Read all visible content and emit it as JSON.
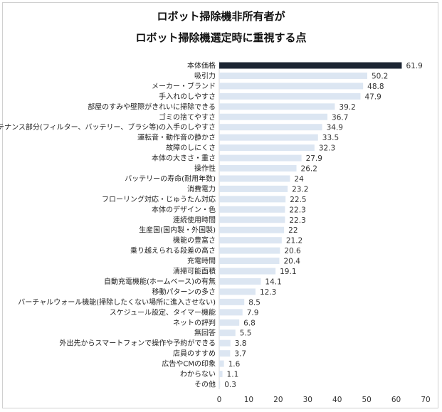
{
  "chart_data": {
    "type": "bar",
    "orientation": "horizontal",
    "title": [
      "ロボット掃除機非所有者が",
      "ロボット掃除機選定時に重視する点"
    ],
    "categories": [
      "本体価格",
      "吸引力",
      "メーカー・ブランド",
      "手入れのしやすさ",
      "部屋のすみや壁際がきれいに掃除できる",
      "ゴミの捨てやすさ",
      "メンテナンス部分(フィルター、バッテリー、ブラシ等)の入手のしやすさ",
      "運転音・動作音の静かさ",
      "故障のしにくさ",
      "本体の大きさ・重さ",
      "操作性",
      "バッテリーの寿命(耐用年数)",
      "消費電力",
      "フローリング対応・じゅうたん対応",
      "本体のデザイン・色",
      "連続使用時間",
      "生産国(国内製・外国製)",
      "機能の豊富さ",
      "乗り越えられる段差の高さ",
      "充電時間",
      "清掃可能面積",
      "自動充電機能(ホームベース)の有無",
      "移動パターンの多さ",
      "バーチャルウォール機能(掃除したくない場所に進入させない)",
      "スケジュール設定、タイマー機能",
      "ネットの評判",
      "無回答",
      "外出先からスマートフォンで操作や予約ができる",
      "店員のすすめ",
      "広告やCMの印象",
      "わからない",
      "その他"
    ],
    "values": [
      61.9,
      50.2,
      48.8,
      47.9,
      39.2,
      36.7,
      34.9,
      33.5,
      32.3,
      27.9,
      26.2,
      24,
      23.2,
      22.5,
      22.3,
      22.3,
      22,
      21.2,
      20.6,
      20.4,
      19.1,
      14.1,
      12.3,
      8.5,
      7.9,
      6.8,
      5.5,
      3.8,
      3.7,
      1.6,
      1.1,
      0.3
    ],
    "xlim": [
      0,
      70
    ],
    "xticks": [
      0,
      10,
      20,
      30,
      40,
      50,
      60,
      70
    ],
    "grid": false,
    "colors": {
      "highlight": "#1c2533",
      "bar": "#dce6f2"
    }
  }
}
